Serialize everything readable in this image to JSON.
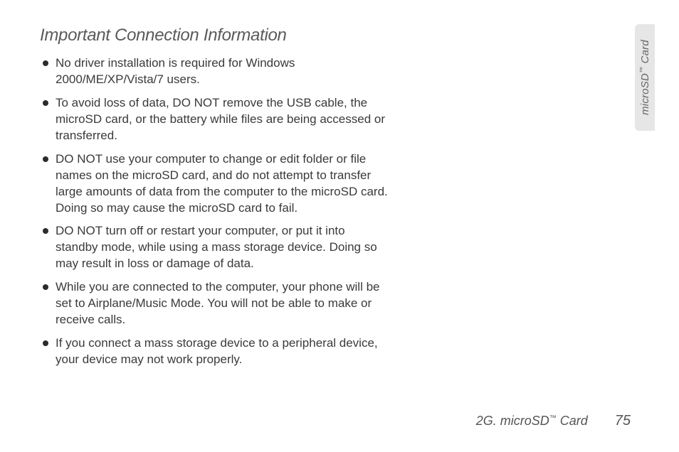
{
  "heading": "Important Connection Information",
  "bullets": [
    "No driver installation is required for Windows 2000/ME/XP/Vista/7 users.",
    "To avoid loss of data, DO NOT remove the USB cable, the microSD card, or the battery while files are being accessed or transferred.",
    "DO NOT use your computer to change or edit folder or file names on the microSD card, and do not attempt to transfer large amounts of data from the computer to the microSD card. Doing so may cause the microSD card to fail.",
    "DO NOT turn off or restart your computer, or put it into standby mode, while using a mass storage device. Doing so may result in loss or damage of data.",
    "While you are connected to the computer, your phone will be set to Airplane/Music Mode. You will not be able to make or receive calls.",
    "If you connect a mass storage device to a peripheral device, your device may not work properly."
  ],
  "side_tab": {
    "prefix": "microSD",
    "tm": "™",
    "suffix": " Card"
  },
  "footer": {
    "section_prefix": "2G. microSD",
    "section_tm": "™",
    "section_suffix": " Card",
    "page_number": "75"
  },
  "colors": {
    "background": "#ffffff",
    "text": "#3a3a3a",
    "heading": "#5a5a5a",
    "tab_bg": "#e6e6e6",
    "tab_text": "#666666",
    "footer_text": "#555555",
    "bullet": "#2b2b2b"
  }
}
